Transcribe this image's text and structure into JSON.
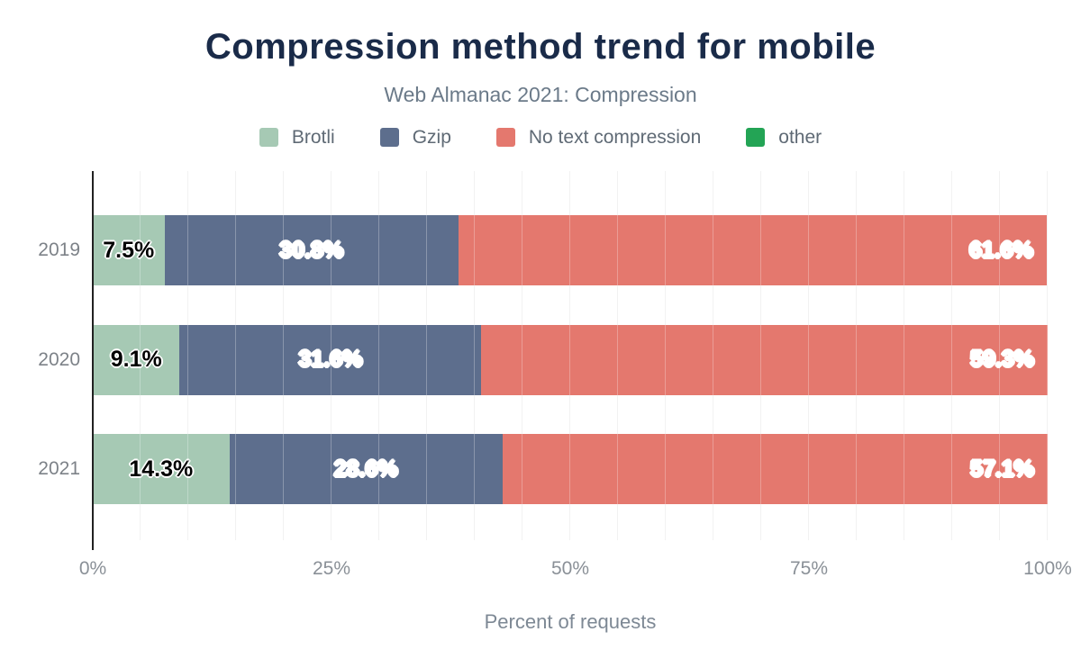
{
  "chart_data": {
    "type": "bar",
    "orientation": "horizontal",
    "stacked": true,
    "title": "Compression method trend for mobile",
    "subtitle": "Web Almanac 2021: Compression",
    "xlabel": "Percent of requests",
    "xlim": [
      0,
      100
    ],
    "grid": true,
    "grid_interval_percent": 5,
    "legend_position": "top",
    "categories": [
      "2019",
      "2020",
      "2021"
    ],
    "series": [
      {
        "name": "Brotli",
        "color": "#a6c9b4",
        "label_color": "#000000",
        "label_align": "center",
        "values": [
          7.5,
          9.1,
          14.3
        ]
      },
      {
        "name": "Gzip",
        "color": "#5d6e8d",
        "label_color": "#ffffff",
        "label_align": "center",
        "values": [
          30.8,
          31.6,
          28.6
        ]
      },
      {
        "name": "No text compression",
        "color": "#e4786e",
        "label_color": "#ffffff",
        "label_align": "right",
        "values": [
          61.6,
          59.3,
          57.1
        ]
      },
      {
        "name": "other",
        "color": "#23a455",
        "label_color": "#ffffff",
        "label_align": "center",
        "values": [
          0,
          0,
          0
        ]
      }
    ],
    "x_ticks": [
      {
        "label": "0%",
        "value": 0
      },
      {
        "label": "25%",
        "value": 25
      },
      {
        "label": "50%",
        "value": 50
      },
      {
        "label": "75%",
        "value": 75
      },
      {
        "label": "100%",
        "value": 100
      }
    ],
    "colors": {
      "title": "#1a2b49",
      "subtitle": "#6b7a89",
      "legend_label": "#5f6a75",
      "axis_line": "#212121",
      "gridline": "#ededed",
      "tick_label": "#8a9097",
      "category_label": "#7d8288",
      "axis_title": "#7d8894"
    }
  }
}
